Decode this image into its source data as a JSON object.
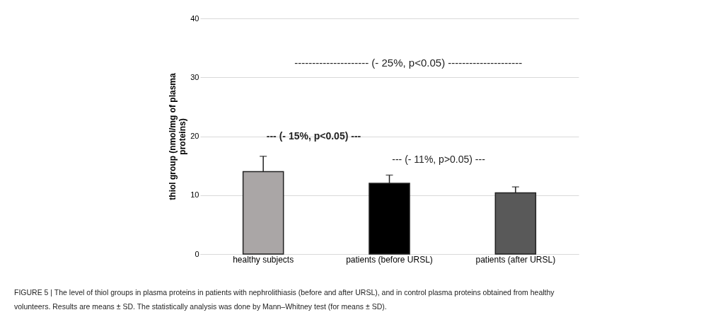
{
  "chart_data": {
    "type": "bar",
    "categories": [
      "healthy subjects",
      "patients (before URSL)",
      "patients (after URSL)"
    ],
    "values": [
      14.0,
      12.0,
      10.4
    ],
    "colors": [
      "#aaa6a6",
      "#000000",
      "#595959"
    ],
    "errors": [
      2.6,
      1.4,
      1.0
    ],
    "ylabel": "thiol group  (nmol/mg of plasma proteins)",
    "ylim": [
      0,
      40
    ],
    "yticks": [
      0,
      10,
      20,
      30,
      40
    ],
    "grid": "y",
    "annotations": [
      "--------------------- (- 25%, p<0.05) ---------------------",
      "--- (- 15%, p<0.05) ---",
      "--- (- 11%, p>0.05) ---",
      "FIGURE 5 | The level of thiol groups in plasma proteins in patients with nephrolithiasis (before and after URSL), and in control plasma proteins obtained from healthy volunteers. Results are means ± SD. The statistically analysis was done by Mann–Whitney test (for means ± SD)."
    ]
  }
}
